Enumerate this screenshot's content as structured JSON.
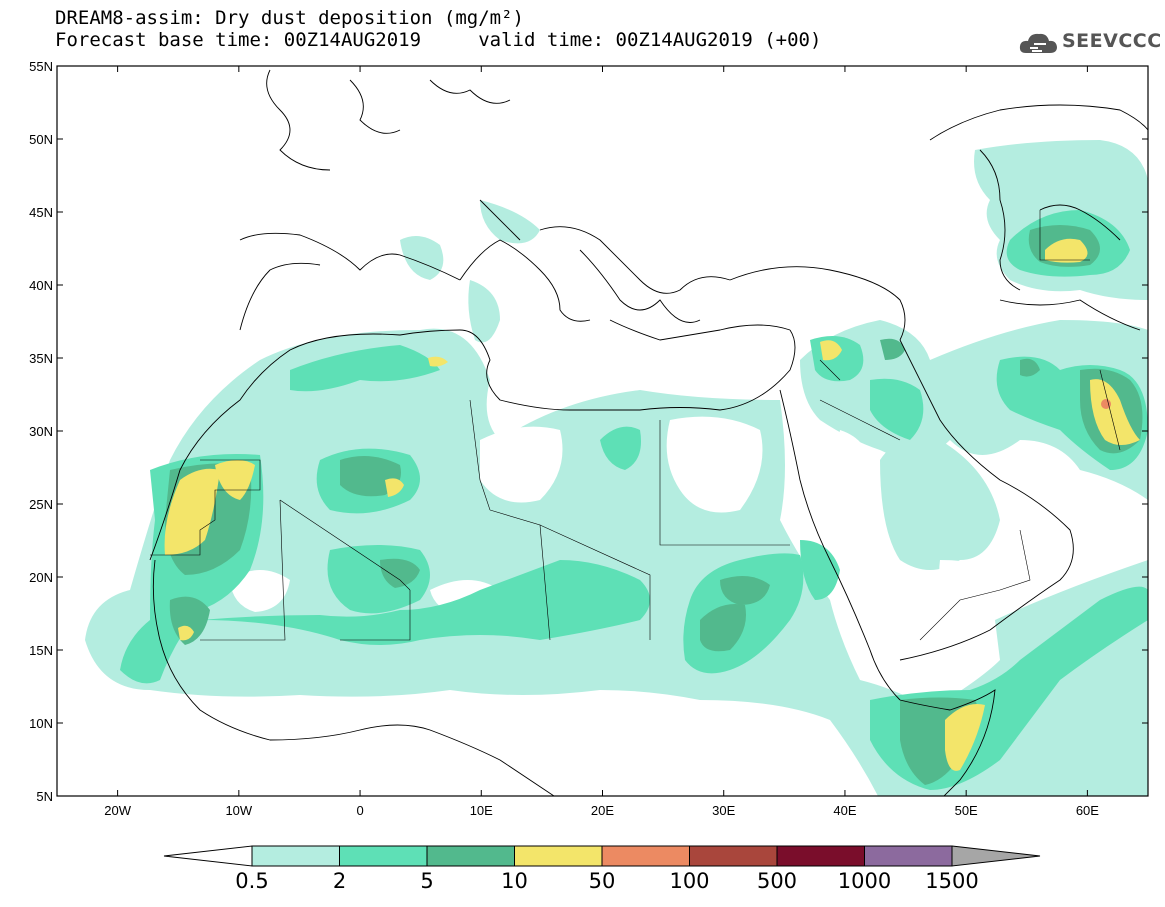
{
  "header": {
    "title_line1": "DREAM8-assim: Dry dust deposition (mg/m²)",
    "title_line2": "Forecast base time: 00Z14AUG2019     valid time: 00Z14AUG2019 (+00)"
  },
  "logo": {
    "text": "SEEVCCC",
    "icon": "cloud-icon"
  },
  "map": {
    "lon_range": [
      -25,
      65
    ],
    "lat_range": [
      5,
      55
    ],
    "lat_labels": [
      "5N",
      "10N",
      "15N",
      "20N",
      "25N",
      "30N",
      "35N",
      "40N",
      "45N",
      "50N",
      "55N"
    ],
    "lon_labels": [
      "20W",
      "10W",
      "0",
      "10E",
      "20E",
      "30E",
      "40E",
      "50E",
      "60E"
    ],
    "colors": {
      "water": "#ffffff",
      "border": "#000000"
    }
  },
  "legend": {
    "labels": [
      "0.5",
      "2",
      "5",
      "10",
      "50",
      "100",
      "500",
      "1000",
      "1500"
    ],
    "colors": [
      "#ffffff",
      "#b4ede0",
      "#5ee0b6",
      "#52b98d",
      "#f3e56a",
      "#ec8a62",
      "#a9463c",
      "#7a0d2b",
      "#8c6a9e",
      "#a6a6a6"
    ]
  }
}
